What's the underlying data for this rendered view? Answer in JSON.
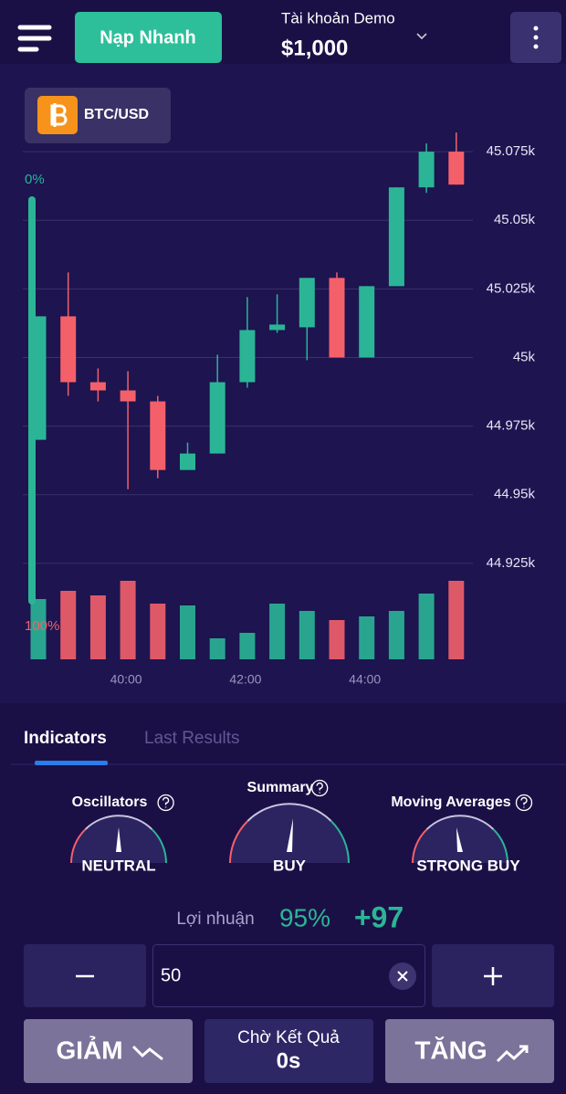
{
  "header": {
    "deposit_button": "Nạp Nhanh",
    "account_label": "Tài khoản Demo",
    "balance": "$1,000"
  },
  "symbol": "BTC/USD",
  "chart_data": {
    "type": "candlestick",
    "categories": [
      null,
      null,
      null,
      "40:00",
      null,
      null,
      null,
      "42:00",
      null,
      null,
      null,
      "44:00",
      null,
      null,
      null
    ],
    "open": [
      44970,
      45015,
      44991,
      44988,
      44984,
      44959,
      44965,
      44991,
      45010,
      45011,
      45029,
      45000,
      45026,
      45062,
      45075
    ],
    "high": [
      45015,
      45031,
      44996,
      44995,
      44986,
      44969,
      45001,
      45022,
      45023,
      45029,
      45031,
      45026,
      45062,
      45078,
      45082
    ],
    "low": [
      44970,
      44986,
      44984,
      44952,
      44956,
      44959,
      44965,
      44989,
      45009,
      44999,
      45000,
      45000,
      45026,
      45060,
      45063
    ],
    "close": [
      45015,
      44991,
      44988,
      44984,
      44959,
      44965,
      44991,
      45010,
      45012,
      45029,
      45000,
      45026,
      45062,
      45075,
      45063
    ],
    "volume": [
      66,
      75,
      70,
      86,
      61,
      59,
      23,
      29,
      61,
      53,
      43,
      47,
      53,
      72,
      86
    ],
    "up_color": "#2bb596",
    "down_color": "#f4606a",
    "ylim": [
      44890,
      45098
    ],
    "yticks": [
      {
        "value": 44925,
        "label": "44.925k"
      },
      {
        "value": 44950,
        "label": "44.95k"
      },
      {
        "value": 44975,
        "label": "44.975k"
      },
      {
        "value": 45000,
        "label": "45k"
      },
      {
        "value": 45025,
        "label": "45.025k"
      },
      {
        "value": 45050,
        "label": "45.05k"
      },
      {
        "value": 45075,
        "label": "45.075k"
      }
    ],
    "grid": true,
    "gauge_top_label": "0%",
    "gauge_bottom_label": "100%"
  },
  "tabs": [
    "Indicators",
    "Last Results"
  ],
  "indicators": [
    {
      "name": "Oscillators",
      "signal": "NEUTRAL"
    },
    {
      "name": "Summary",
      "signal": "BUY"
    },
    {
      "name": "Moving Averages",
      "signal": "STRONG BUY"
    }
  ],
  "profit": {
    "label": "Lợi nhuận",
    "rate": "95%",
    "amount": "+97"
  },
  "amount_input": "50",
  "buttons": {
    "down": "GIẢM",
    "status": "Chờ Kết Quả",
    "timer": "0s",
    "up": "TĂNG"
  }
}
